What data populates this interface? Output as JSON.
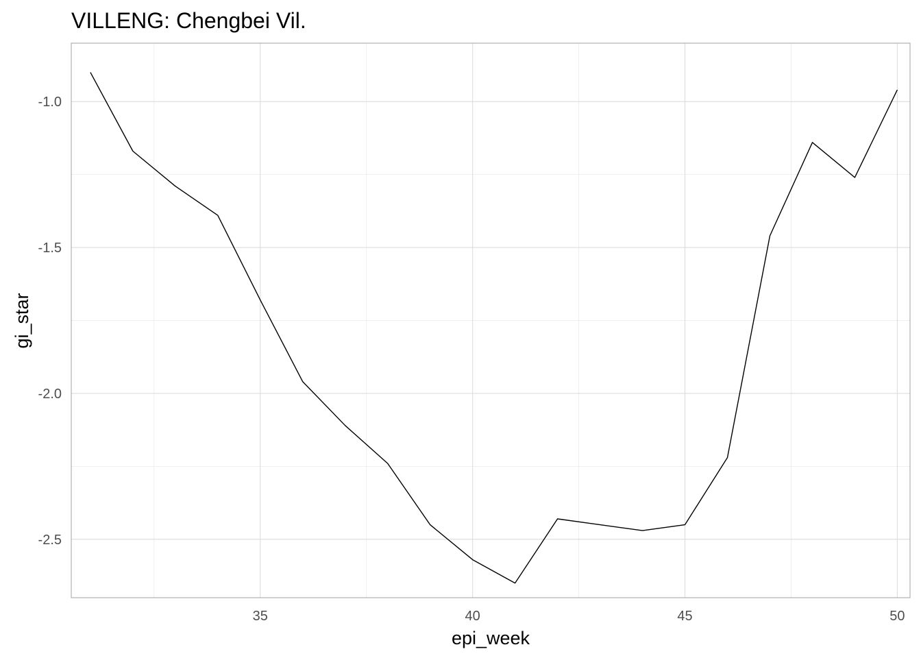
{
  "chart_data": {
    "type": "line",
    "title": "VILLENG: Chengbei Vil.",
    "xlabel": "epi_week",
    "ylabel": "gi_star",
    "xlim": [
      30.55,
      50.3
    ],
    "ylim": [
      -2.7,
      -0.8
    ],
    "xticks": [
      35,
      40,
      45,
      50
    ],
    "xtick_labels": [
      "35",
      "40",
      "45",
      "50"
    ],
    "xticks_minor": [
      32.5,
      37.5,
      42.5,
      47.5
    ],
    "yticks": [
      -2.5,
      -2.0,
      -1.5,
      -1.0
    ],
    "ytick_labels": [
      "-2.5",
      "-2.0",
      "-1.5",
      "-1.0"
    ],
    "yticks_minor": [
      -2.25,
      -1.75,
      -1.25,
      -0.75
    ],
    "grid": true,
    "series": [
      {
        "color": "#000000",
        "x": [
          31,
          32,
          33,
          34,
          35,
          36,
          37,
          38,
          39,
          40,
          41,
          42,
          43,
          44,
          45,
          46,
          47,
          48,
          49,
          50
        ],
        "y": [
          -0.9,
          -1.17,
          -1.29,
          -1.39,
          -1.68,
          -1.96,
          -2.11,
          -2.24,
          -2.45,
          -2.57,
          -2.65,
          -2.43,
          -2.45,
          -2.47,
          -2.45,
          -2.22,
          -1.46,
          -1.14,
          -1.26,
          -0.96
        ]
      }
    ]
  }
}
